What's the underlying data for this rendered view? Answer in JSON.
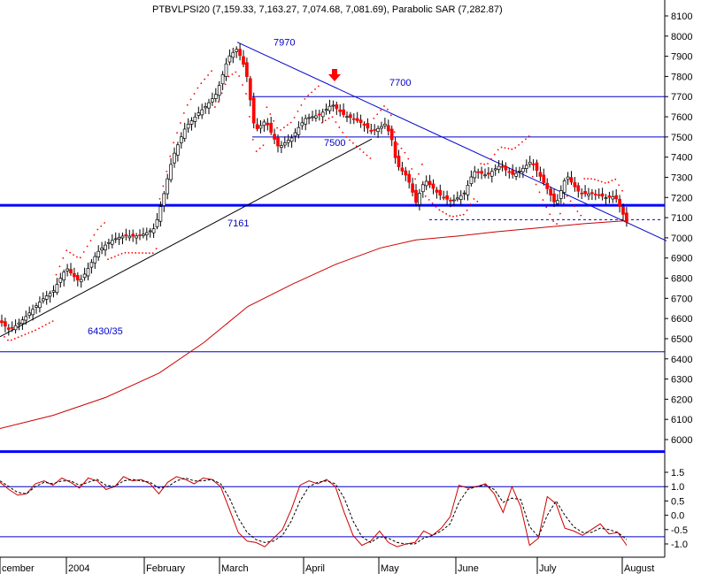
{
  "chart_data": [
    {
      "type": "candlestick",
      "title": "PTBVLPSI20 (7,159.33, 7,163.27, 7,074.68, 7,081.69), Parabolic SAR (7,282.87)",
      "ylim": [
        5900,
        8150
      ],
      "y_ticks": [
        6000,
        6100,
        6200,
        6300,
        6400,
        6500,
        6600,
        6700,
        6800,
        6900,
        7000,
        7100,
        7200,
        7300,
        7400,
        7500,
        7600,
        7700,
        7800,
        7900,
        8000,
        8100
      ],
      "x_labels": [
        "cember",
        "2004",
        "February",
        "March",
        "April",
        "May",
        "June",
        "July",
        "August"
      ],
      "grid": false,
      "colors": {
        "up": "#ffffff",
        "down": "#ff0000",
        "wick": "#000000",
        "sar": "#ff0000",
        "ma": "#cc0000",
        "trend": "#000000",
        "resistance": "#0000cc",
        "support": "#0000ff"
      },
      "annotations": [
        {
          "text": "7970",
          "value": 7970
        },
        {
          "text": "7700",
          "value": 7700
        },
        {
          "text": "7500",
          "value": 7500
        },
        {
          "text": "7161",
          "value": 7161
        },
        {
          "text": "6430/35",
          "value": 6435
        }
      ],
      "horizontal_lines": [
        {
          "value": 7700,
          "kind": "resistance"
        },
        {
          "value": 7500,
          "kind": "resistance"
        },
        {
          "value": 7161,
          "kind": "support-thick"
        },
        {
          "value": 7090,
          "kind": "dashed"
        },
        {
          "value": 6435,
          "kind": "support"
        },
        {
          "value": 5940,
          "kind": "support-thick"
        }
      ]
    },
    {
      "type": "line",
      "title": "",
      "ylim": [
        -1.25,
        1.8
      ],
      "y_ticks": [
        "1.5",
        "1.0",
        "0.5",
        "0.0",
        "-0.5",
        "-1.0"
      ],
      "y_tick_values": [
        1.5,
        1.0,
        0.5,
        0.0,
        -0.5,
        -1.0
      ],
      "horizontal_lines": [
        1.0,
        -0.75
      ],
      "series": [
        {
          "style": "solid",
          "color": "#cc0000",
          "values": [
            1.15,
            0.9,
            0.7,
            0.75,
            1.1,
            1.2,
            1.05,
            1.3,
            1.15,
            0.95,
            1.3,
            1.2,
            0.9,
            1.0,
            1.35,
            1.2,
            1.25,
            1.1,
            0.75,
            1.15,
            1.35,
            1.25,
            1.1,
            1.3,
            1.25,
            1.0,
            0.2,
            -0.6,
            -0.9,
            -0.95,
            -1.1,
            -0.8,
            -0.5,
            0.2,
            1.05,
            1.2,
            1.1,
            1.25,
            1.0,
            0.1,
            -0.7,
            -1.05,
            -0.9,
            -0.55,
            -0.95,
            -1.1,
            -1.0,
            -0.95,
            -0.55,
            -0.7,
            -0.45,
            -0.05,
            1.05,
            0.95,
            1.0,
            1.1,
            0.75,
            0.1,
            1.0,
            0.3,
            -1.05,
            -0.8,
            0.65,
            0.4,
            -0.45,
            -0.55,
            -0.7,
            -0.5,
            -0.3,
            -0.65,
            -0.6,
            -1.05
          ]
        },
        {
          "style": "dashed",
          "color": "#000000",
          "values": [
            1.2,
            1.0,
            0.8,
            0.75,
            1.0,
            1.15,
            1.1,
            1.2,
            1.2,
            1.05,
            1.15,
            1.25,
            1.05,
            1.0,
            1.2,
            1.25,
            1.2,
            1.15,
            0.95,
            1.0,
            1.2,
            1.3,
            1.2,
            1.2,
            1.25,
            1.1,
            0.6,
            -0.1,
            -0.6,
            -0.85,
            -0.95,
            -0.9,
            -0.7,
            -0.2,
            0.5,
            1.0,
            1.15,
            1.2,
            1.1,
            0.6,
            -0.2,
            -0.75,
            -0.95,
            -0.75,
            -0.8,
            -0.95,
            -1.0,
            -1.0,
            -0.8,
            -0.7,
            -0.55,
            -0.3,
            0.45,
            0.9,
            1.0,
            1.05,
            0.9,
            0.45,
            0.6,
            0.55,
            -0.4,
            -0.75,
            0.0,
            0.5,
            0.0,
            -0.4,
            -0.6,
            -0.6,
            -0.45,
            -0.5,
            -0.6,
            -0.85
          ]
        }
      ]
    }
  ]
}
